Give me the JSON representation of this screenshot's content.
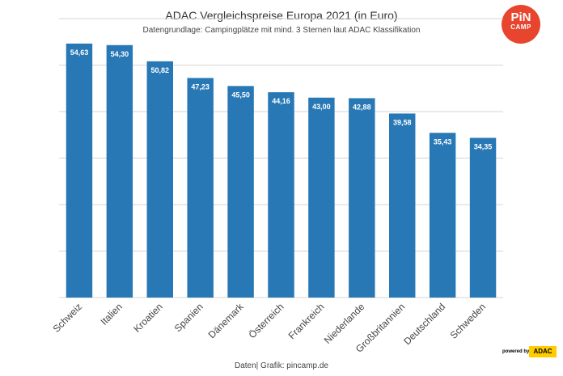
{
  "chart_data": {
    "type": "bar",
    "title": "ADAC Vergleichspreise Europa 2021 (in Euro)",
    "subtitle": "Datengrundlage: Campingplätze mit mind. 3 Sternen laut ADAC Klassifikation",
    "categories": [
      "Schweiz",
      "Italien",
      "Kroatien",
      "Spanien",
      "Dänemark",
      "Österreich",
      "Frankreich",
      "Niederlande",
      "Großbritannien",
      "Deutschland",
      "Schweden"
    ],
    "values": [
      54.63,
      54.3,
      50.82,
      47.23,
      45.5,
      44.16,
      43.0,
      42.88,
      39.58,
      35.43,
      34.35
    ],
    "data_labels": [
      "54,63",
      "54,30",
      "50,82",
      "47,23",
      "45,50",
      "44,16",
      "43,00",
      "42,88",
      "39,58",
      "35,43",
      "34,35"
    ],
    "ylim": [
      0,
      60
    ],
    "gridlines": [
      0,
      10,
      20,
      30,
      40,
      50,
      60
    ],
    "grid": true,
    "xlabel": "",
    "ylabel": "",
    "bar_color": "#2878b5",
    "grid_color": "#d4d4d4"
  },
  "source": "Daten| Grafik: pincamp.de",
  "logo": {
    "line1": "PiN",
    "line2": "CAMP",
    "color": "#e8452f"
  },
  "powered_by": "powered by",
  "adac_badge": "ADAC"
}
